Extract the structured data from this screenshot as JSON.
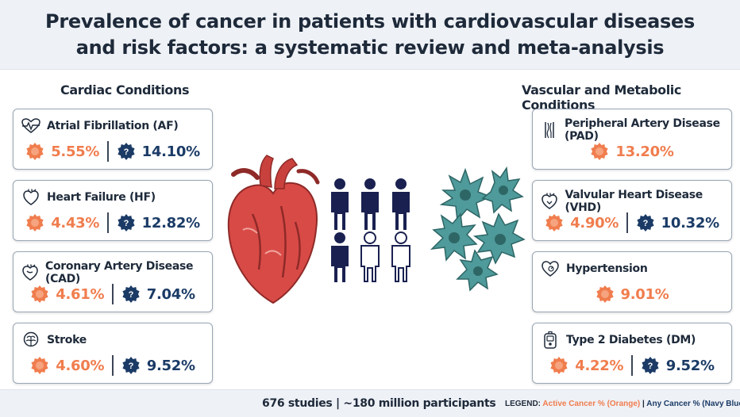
{
  "title": {
    "line1": "Prevalence of cancer in patients with cardiovascular diseases",
    "line2": "and risk factors: a systematic review and meta-analysis"
  },
  "left_heading": "Cardiac Conditions",
  "right_heading": "Vascular and Metabolic Conditions",
  "left_cards": [
    {
      "name": "Atrial Fibrillation (AF)",
      "icon": "heartbeat-icon",
      "active": "5.55%",
      "any": "14.10%"
    },
    {
      "name": "Heart Failure (HF)",
      "icon": "heart-organ-icon",
      "active": "4.43%",
      "any": "12.82%"
    },
    {
      "name": "Coronary Artery Disease (CAD)",
      "icon": "heart-organ-icon",
      "active": "4.61%",
      "any": "7.04%"
    },
    {
      "name": "Stroke",
      "icon": "brain-icon",
      "active": "4.60%",
      "any": "9.52%"
    }
  ],
  "right_cards": [
    {
      "name": "Peripheral Artery Disease (PAD)",
      "icon": "leg-arteries-icon",
      "active": "13.20%"
    },
    {
      "name": "Valvular Heart Disease (VHD)",
      "icon": "heart-organ-icon",
      "active": "4.90%",
      "any": "10.32%"
    },
    {
      "name": "Hypertension",
      "icon": "heart-pressure-icon",
      "active": "9.01%"
    },
    {
      "name": "Type 2 Diabetes (DM)",
      "icon": "glucose-meter-icon",
      "active": "4.22%",
      "any": "9.52%"
    }
  ],
  "badge_symbol": "?",
  "footer": {
    "stats": "676 studies | ~180 million participants",
    "legend_label": "LEGEND:",
    "legend_active": "Active Cancer % (Orange)",
    "legend_sep": "|",
    "legend_any": "Any Cancer % (Navy Blue)"
  },
  "colors": {
    "active": "#f07d4e",
    "any": "#1b3b66",
    "heart": "#d84a46",
    "cancer_cell": "#4f9a9a",
    "people": "#1a2150"
  }
}
